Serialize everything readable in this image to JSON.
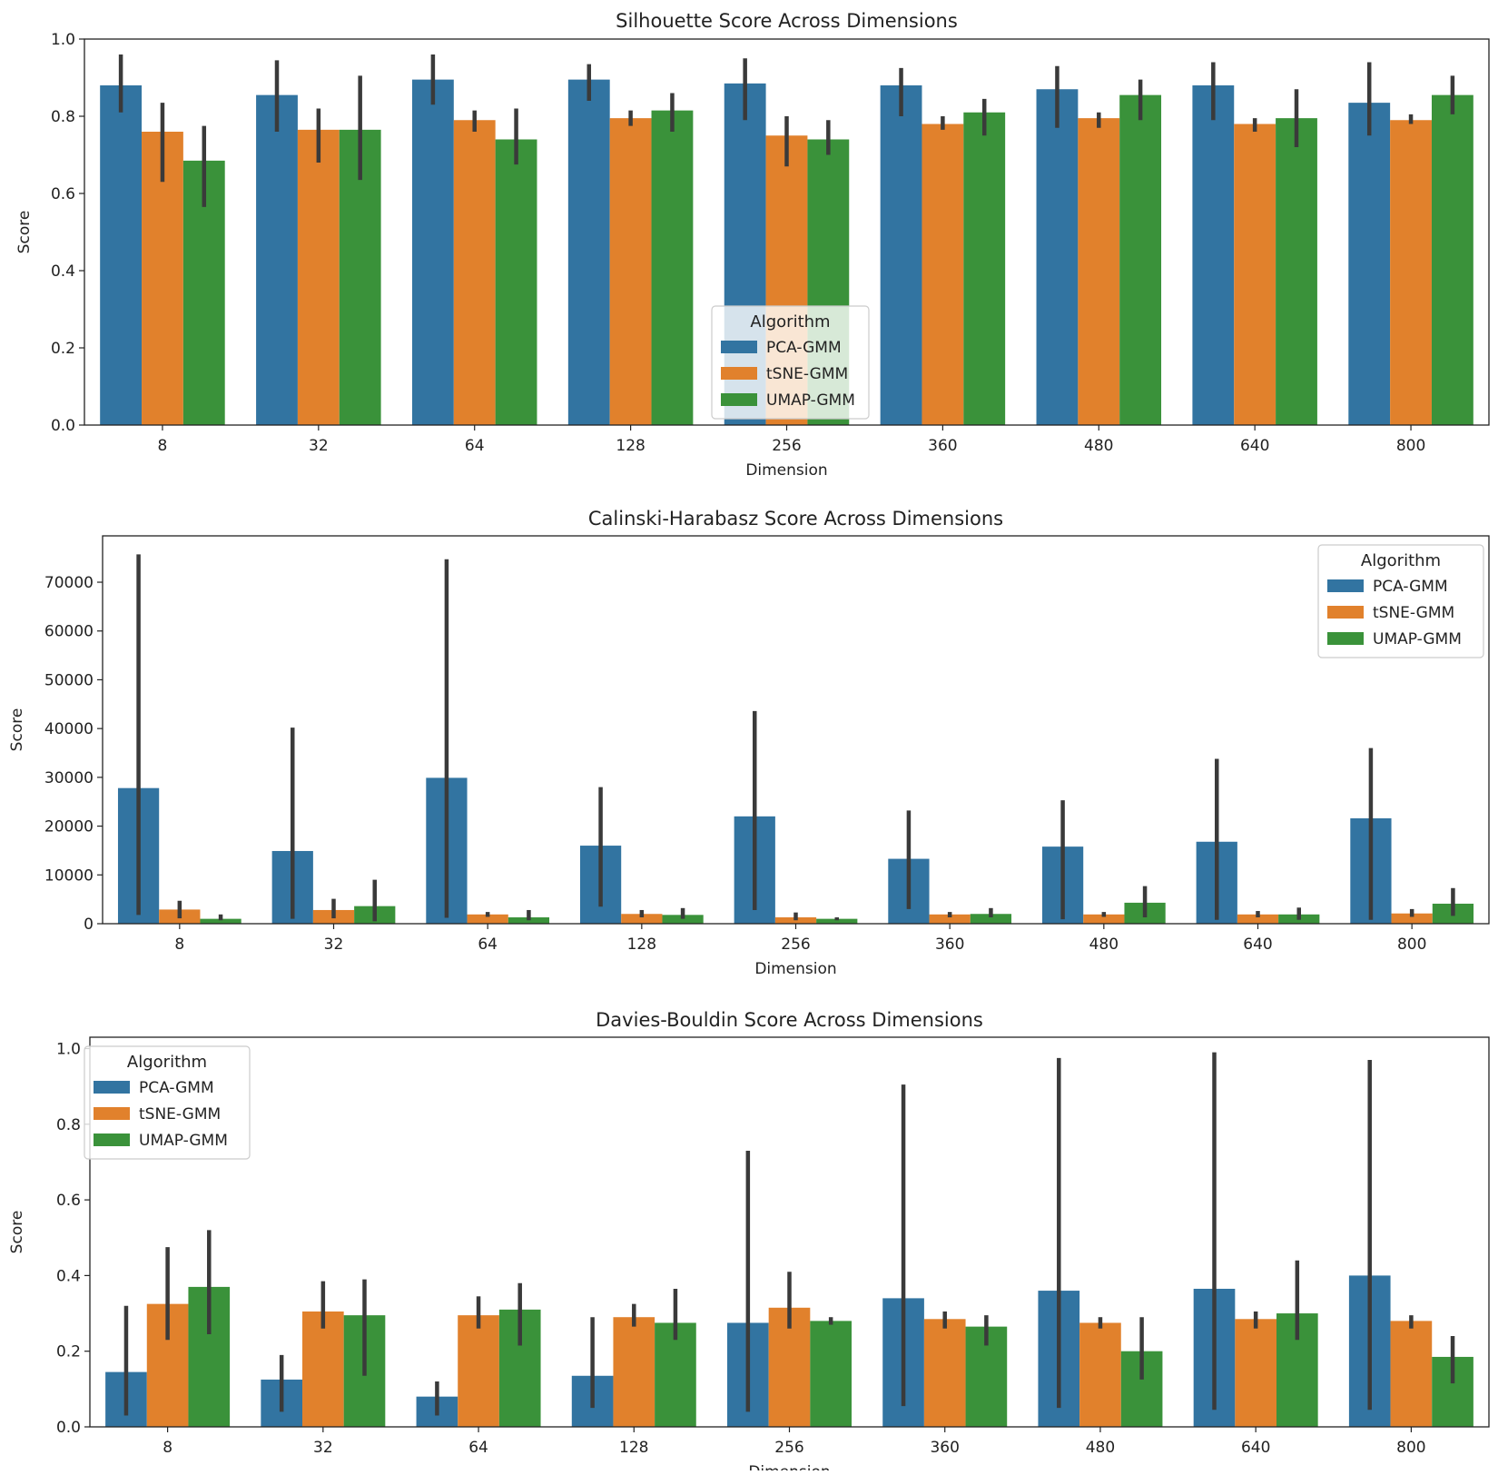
{
  "chart_data": [
    {
      "type": "bar",
      "title": "Silhouette Score Across Dimensions",
      "xlabel": "Dimension",
      "ylabel": "Score",
      "ylim": [
        0,
        1.0
      ],
      "yticks": [
        "0.0",
        "0.2",
        "0.4",
        "0.6",
        "0.8",
        "1.0"
      ],
      "categories": [
        "8",
        "32",
        "64",
        "128",
        "256",
        "360",
        "480",
        "640",
        "800"
      ],
      "legend": {
        "title": "Algorithm",
        "position": "center"
      },
      "series": [
        {
          "name": "PCA-GMM",
          "color": "#3274a1",
          "values": [
            0.88,
            0.855,
            0.895,
            0.895,
            0.885,
            0.88,
            0.87,
            0.88,
            0.835
          ],
          "err_low": [
            0.81,
            0.76,
            0.83,
            0.84,
            0.79,
            0.8,
            0.77,
            0.79,
            0.75
          ],
          "err_high": [
            0.96,
            0.945,
            0.96,
            0.935,
            0.95,
            0.925,
            0.93,
            0.94,
            0.94
          ]
        },
        {
          "name": "tSNE-GMM",
          "color": "#e1812c",
          "values": [
            0.76,
            0.765,
            0.79,
            0.795,
            0.75,
            0.78,
            0.795,
            0.78,
            0.79
          ],
          "err_low": [
            0.63,
            0.68,
            0.76,
            0.775,
            0.67,
            0.765,
            0.77,
            0.76,
            0.78
          ],
          "err_high": [
            0.835,
            0.82,
            0.815,
            0.815,
            0.8,
            0.8,
            0.81,
            0.795,
            0.805
          ]
        },
        {
          "name": "UMAP-GMM",
          "color": "#3a923a",
          "values": [
            0.685,
            0.765,
            0.74,
            0.815,
            0.74,
            0.81,
            0.855,
            0.795,
            0.855
          ],
          "err_low": [
            0.565,
            0.635,
            0.675,
            0.76,
            0.7,
            0.75,
            0.79,
            0.72,
            0.805
          ],
          "err_high": [
            0.775,
            0.905,
            0.82,
            0.86,
            0.79,
            0.845,
            0.895,
            0.87,
            0.905
          ]
        }
      ]
    },
    {
      "type": "bar",
      "title": "Calinski-Harabasz Score Across Dimensions",
      "xlabel": "Dimension",
      "ylabel": "Score",
      "ylim": [
        0,
        79500
      ],
      "yticks": [
        "0",
        "10000",
        "20000",
        "30000",
        "40000",
        "50000",
        "60000",
        "70000"
      ],
      "categories": [
        "8",
        "32",
        "64",
        "128",
        "256",
        "360",
        "480",
        "640",
        "800"
      ],
      "legend": {
        "title": "Algorithm",
        "position": "upper right"
      },
      "series": [
        {
          "name": "PCA-GMM",
          "color": "#3274a1",
          "values": [
            27800,
            14900,
            29900,
            16000,
            22000,
            13300,
            15800,
            16800,
            21600
          ],
          "err_low": [
            1800,
            1000,
            1200,
            3500,
            2800,
            3000,
            900,
            800,
            800
          ],
          "err_high": [
            75700,
            40200,
            74700,
            28000,
            43600,
            23200,
            25300,
            33800,
            36000
          ]
        },
        {
          "name": "tSNE-GMM",
          "color": "#e1812c",
          "values": [
            2900,
            2800,
            1900,
            2000,
            1300,
            1900,
            1900,
            1900,
            2100
          ],
          "err_low": [
            1100,
            1100,
            1400,
            1300,
            700,
            1300,
            1400,
            1300,
            1400
          ],
          "err_high": [
            4700,
            5100,
            2400,
            2800,
            2300,
            2400,
            2400,
            2600,
            3000
          ]
        },
        {
          "name": "UMAP-GMM",
          "color": "#3a923a",
          "values": [
            1000,
            3600,
            1300,
            1800,
            1000,
            2000,
            4300,
            1900,
            4100
          ],
          "err_low": [
            700,
            500,
            700,
            1000,
            700,
            1300,
            1300,
            800,
            1600
          ],
          "err_high": [
            1900,
            9000,
            2800,
            3200,
            1300,
            3200,
            7700,
            3300,
            7300
          ]
        }
      ]
    },
    {
      "type": "bar",
      "title": "Davies-Bouldin Score Across Dimensions",
      "xlabel": "Dimension",
      "ylabel": "Score",
      "ylim": [
        0,
        1.03
      ],
      "yticks": [
        "0.0",
        "0.2",
        "0.4",
        "0.6",
        "0.8",
        "1.0"
      ],
      "categories": [
        "8",
        "32",
        "64",
        "128",
        "256",
        "360",
        "480",
        "640",
        "800"
      ],
      "legend": {
        "title": "Algorithm",
        "position": "upper left"
      },
      "series": [
        {
          "name": "PCA-GMM",
          "color": "#3274a1",
          "values": [
            0.145,
            0.125,
            0.08,
            0.135,
            0.275,
            0.34,
            0.36,
            0.365,
            0.4
          ],
          "err_low": [
            0.03,
            0.04,
            0.03,
            0.05,
            0.04,
            0.055,
            0.05,
            0.045,
            0.045
          ],
          "err_high": [
            0.32,
            0.19,
            0.12,
            0.29,
            0.73,
            0.905,
            0.975,
            0.99,
            0.97
          ]
        },
        {
          "name": "tSNE-GMM",
          "color": "#e1812c",
          "values": [
            0.325,
            0.305,
            0.295,
            0.29,
            0.315,
            0.285,
            0.275,
            0.285,
            0.28
          ],
          "err_low": [
            0.23,
            0.26,
            0.26,
            0.265,
            0.26,
            0.26,
            0.26,
            0.26,
            0.26
          ],
          "err_high": [
            0.475,
            0.385,
            0.345,
            0.325,
            0.41,
            0.305,
            0.29,
            0.305,
            0.295
          ]
        },
        {
          "name": "UMAP-GMM",
          "color": "#3a923a",
          "values": [
            0.37,
            0.295,
            0.31,
            0.275,
            0.28,
            0.265,
            0.2,
            0.3,
            0.185
          ],
          "err_low": [
            0.245,
            0.135,
            0.215,
            0.23,
            0.27,
            0.215,
            0.125,
            0.23,
            0.115
          ],
          "err_high": [
            0.52,
            0.39,
            0.38,
            0.365,
            0.29,
            0.295,
            0.29,
            0.44,
            0.24
          ]
        }
      ]
    }
  ]
}
